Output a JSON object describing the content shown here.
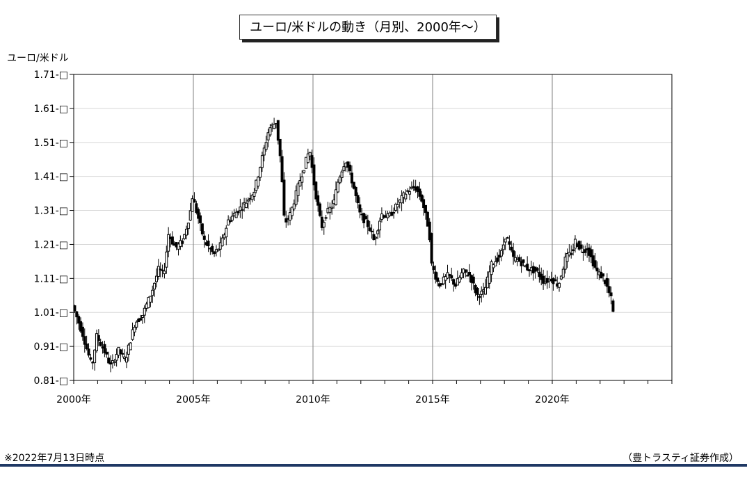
{
  "chart_data": {
    "type": "ohlc",
    "title": "ユーロ/米ドルの動き（月別、2000年～）",
    "ylabel": "ユーロ/米ドル",
    "ylim": [
      0.81,
      1.71
    ],
    "yticks": [
      "0.81",
      "0.91",
      "1.01",
      "1.11",
      "1.21",
      "1.31",
      "1.41",
      "1.51",
      "1.61",
      "1.71"
    ],
    "xlim": [
      2000.0,
      2025.0
    ],
    "xticks": [
      {
        "value": 2000,
        "label": "2000年"
      },
      {
        "value": 2005,
        "label": "2005年"
      },
      {
        "value": 2010,
        "label": "2010年"
      },
      {
        "value": 2015,
        "label": "2015年"
      },
      {
        "value": 2020,
        "label": "2020年"
      }
    ],
    "grid": true,
    "anchors": [
      [
        2000.0,
        1.03
      ],
      [
        2000.4,
        0.95
      ],
      [
        2000.8,
        0.85
      ],
      [
        2001.0,
        0.94
      ],
      [
        2001.3,
        0.9
      ],
      [
        2001.6,
        0.85
      ],
      [
        2001.9,
        0.9
      ],
      [
        2002.2,
        0.87
      ],
      [
        2002.6,
        0.98
      ],
      [
        2002.9,
        1.0
      ],
      [
        2003.3,
        1.07
      ],
      [
        2003.6,
        1.14
      ],
      [
        2003.8,
        1.12
      ],
      [
        2004.0,
        1.24
      ],
      [
        2004.3,
        1.2
      ],
      [
        2004.6,
        1.22
      ],
      [
        2004.9,
        1.3
      ],
      [
        2005.0,
        1.35
      ],
      [
        2005.2,
        1.3
      ],
      [
        2005.5,
        1.22
      ],
      [
        2005.9,
        1.18
      ],
      [
        2006.2,
        1.21
      ],
      [
        2006.5,
        1.28
      ],
      [
        2006.9,
        1.31
      ],
      [
        2007.2,
        1.33
      ],
      [
        2007.6,
        1.37
      ],
      [
        2007.9,
        1.46
      ],
      [
        2008.2,
        1.55
      ],
      [
        2008.5,
        1.57
      ],
      [
        2008.7,
        1.45
      ],
      [
        2008.85,
        1.27
      ],
      [
        2009.1,
        1.3
      ],
      [
        2009.5,
        1.4
      ],
      [
        2009.9,
        1.49
      ],
      [
        2010.1,
        1.38
      ],
      [
        2010.4,
        1.26
      ],
      [
        2010.6,
        1.3
      ],
      [
        2010.9,
        1.33
      ],
      [
        2011.1,
        1.4
      ],
      [
        2011.4,
        1.46
      ],
      [
        2011.7,
        1.39
      ],
      [
        2012.0,
        1.3
      ],
      [
        2012.4,
        1.26
      ],
      [
        2012.6,
        1.22
      ],
      [
        2012.9,
        1.3
      ],
      [
        2013.2,
        1.29
      ],
      [
        2013.5,
        1.32
      ],
      [
        2013.9,
        1.36
      ],
      [
        2014.3,
        1.38
      ],
      [
        2014.6,
        1.34
      ],
      [
        2014.9,
        1.25
      ],
      [
        2015.0,
        1.15
      ],
      [
        2015.3,
        1.09
      ],
      [
        2015.7,
        1.12
      ],
      [
        2016.0,
        1.09
      ],
      [
        2016.3,
        1.13
      ],
      [
        2016.6,
        1.12
      ],
      [
        2016.9,
        1.06
      ],
      [
        2017.2,
        1.07
      ],
      [
        2017.5,
        1.15
      ],
      [
        2017.9,
        1.18
      ],
      [
        2018.1,
        1.24
      ],
      [
        2018.4,
        1.17
      ],
      [
        2018.7,
        1.16
      ],
      [
        2019.0,
        1.14
      ],
      [
        2019.4,
        1.13
      ],
      [
        2019.7,
        1.1
      ],
      [
        2020.0,
        1.11
      ],
      [
        2020.3,
        1.09
      ],
      [
        2020.6,
        1.17
      ],
      [
        2020.9,
        1.19
      ],
      [
        2021.0,
        1.22
      ],
      [
        2021.3,
        1.19
      ],
      [
        2021.5,
        1.2
      ],
      [
        2021.9,
        1.13
      ],
      [
        2022.2,
        1.11
      ],
      [
        2022.5,
        1.05
      ],
      [
        2022.55,
        1.01
      ]
    ]
  },
  "footnote": "※2022年7月13日時点",
  "source": "（豊トラスティ証券作成）"
}
